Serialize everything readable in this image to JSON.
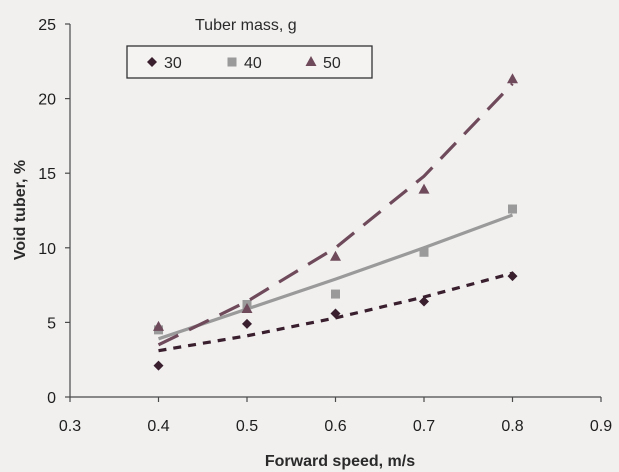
{
  "chart_data": {
    "type": "scatter",
    "xlabel": "Forward speed, m/s",
    "ylabel": "Void tuber, %",
    "xlim": [
      0.3,
      0.9
    ],
    "ylim": [
      0,
      25
    ],
    "x_ticks": [
      "0.3",
      "0.4",
      "0.5",
      "0.6",
      "0.7",
      "0.8",
      "0.9"
    ],
    "y_ticks": [
      "0",
      "5",
      "10",
      "15",
      "20",
      "25"
    ],
    "grid": false,
    "legend": {
      "title": "Tuber mass, g",
      "placement": "top-left"
    },
    "series": [
      {
        "name": "30",
        "marker": "diamond",
        "color": "#3a1f2e",
        "line_style": "short-dash",
        "points": [
          [
            0.4,
            2.1
          ],
          [
            0.5,
            4.9
          ],
          [
            0.6,
            5.6
          ],
          [
            0.7,
            6.4
          ],
          [
            0.8,
            8.1
          ]
        ],
        "trend": [
          [
            0.4,
            3.1
          ],
          [
            0.5,
            4.1
          ],
          [
            0.6,
            5.3
          ],
          [
            0.7,
            6.7
          ],
          [
            0.8,
            8.3
          ]
        ]
      },
      {
        "name": "40",
        "marker": "square",
        "color": "#9a9a9a",
        "line_style": "solid",
        "points": [
          [
            0.4,
            4.5
          ],
          [
            0.5,
            6.2
          ],
          [
            0.6,
            6.9
          ],
          [
            0.7,
            9.7
          ],
          [
            0.8,
            12.6
          ]
        ],
        "trend": [
          [
            0.4,
            3.9
          ],
          [
            0.5,
            5.9
          ],
          [
            0.6,
            7.9
          ],
          [
            0.7,
            10.0
          ],
          [
            0.8,
            12.2
          ]
        ]
      },
      {
        "name": "50",
        "marker": "triangle",
        "color": "#6e4a5a",
        "line_style": "long-dash",
        "points": [
          [
            0.4,
            4.7
          ],
          [
            0.5,
            5.9
          ],
          [
            0.6,
            9.4
          ],
          [
            0.7,
            13.9
          ],
          [
            0.8,
            21.3
          ]
        ],
        "trend": [
          [
            0.4,
            3.5
          ],
          [
            0.5,
            6.4
          ],
          [
            0.6,
            10.0
          ],
          [
            0.7,
            14.8
          ],
          [
            0.8,
            21.0
          ]
        ]
      }
    ]
  }
}
